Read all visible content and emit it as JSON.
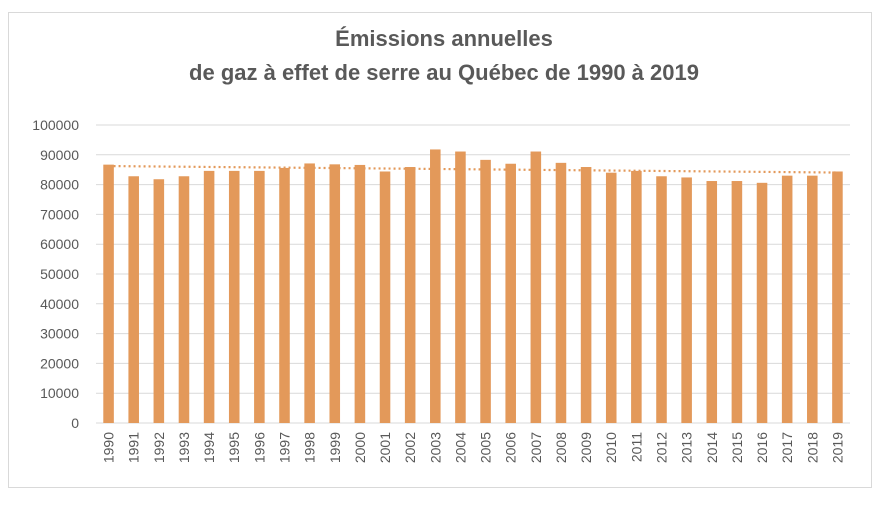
{
  "chart_data": {
    "type": "bar",
    "title": "Émissions annuelles de gaz à effet de serre au Québec de 1990 à 2019",
    "title_lines": [
      "Émissions annuelles",
      "de gaz à effet de serre au Québec de 1990 à 2019"
    ],
    "xlabel": "",
    "ylabel": "",
    "ylim": [
      0,
      100000
    ],
    "yticks": [
      0,
      10000,
      20000,
      30000,
      40000,
      50000,
      60000,
      70000,
      80000,
      90000,
      100000
    ],
    "grid": true,
    "legend": "none",
    "trendline": {
      "type": "linear",
      "style": "dotted"
    },
    "bar_color": "#E3995A",
    "trend_color": "#E3995A",
    "gridline_color": "#d9d9d9",
    "categories": [
      "1990",
      "1991",
      "1992",
      "1993",
      "1994",
      "1995",
      "1996",
      "1997",
      "1998",
      "1999",
      "2000",
      "2001",
      "2002",
      "2003",
      "2004",
      "2005",
      "2006",
      "2007",
      "2008",
      "2009",
      "2010",
      "2011",
      "2012",
      "2013",
      "2014",
      "2015",
      "2016",
      "2017",
      "2018",
      "2019"
    ],
    "values": [
      86700,
      82800,
      81800,
      82800,
      84600,
      84600,
      84600,
      85600,
      87100,
      86800,
      86600,
      84400,
      85900,
      91800,
      91100,
      88300,
      87000,
      91100,
      87300,
      85900,
      84000,
      84600,
      82800,
      82400,
      81200,
      81200,
      80600,
      83000,
      83000,
      84400
    ]
  }
}
